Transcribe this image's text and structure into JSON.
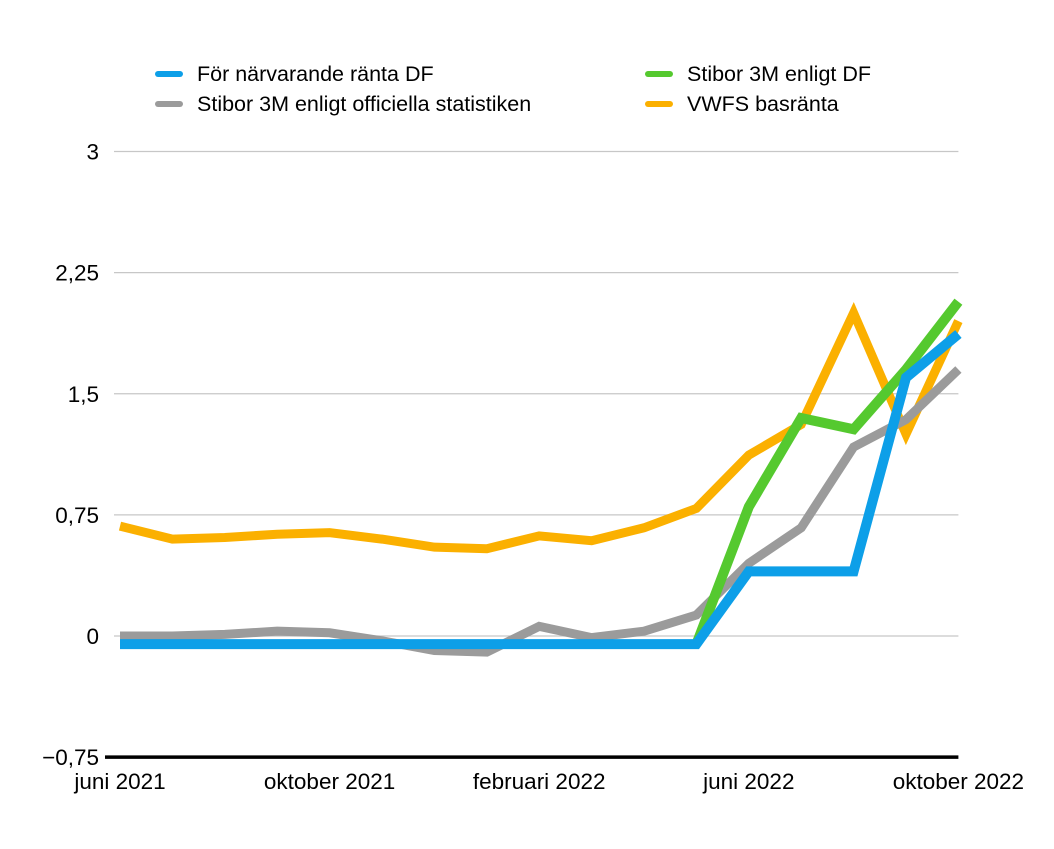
{
  "background_color": "#ffffff",
  "text_color": "#000000",
  "gridline_color": "#c7c7c7",
  "axis_color": "#000000",
  "legend": {
    "items": [
      {
        "series": 0,
        "column": 0,
        "row": 0
      },
      {
        "series": 1,
        "column": 0,
        "row": 1
      },
      {
        "series": 2,
        "column": 1,
        "row": 0
      },
      {
        "series": 3,
        "column": 1,
        "row": 1
      }
    ]
  },
  "chart_data": {
    "type": "line",
    "title": "",
    "xlabel": "",
    "ylabel": "",
    "ylim": [
      -0.75,
      3
    ],
    "grid": true,
    "legend_position": "top",
    "x_unit": "month",
    "categories": [
      "juni 2021",
      "juli 2021",
      "augusti 2021",
      "september 2021",
      "oktober 2021",
      "november 2021",
      "december 2021",
      "januari 2022",
      "februari 2022",
      "mars 2022",
      "april 2022",
      "maj 2022",
      "juni 2022",
      "juli 2022",
      "augusti 2022",
      "september 2022",
      "oktober 2022"
    ],
    "x_ticks": [
      {
        "index": 0,
        "label": "juni 2021"
      },
      {
        "index": 4,
        "label": "oktober 2021"
      },
      {
        "index": 8,
        "label": "februari 2022"
      },
      {
        "index": 12,
        "label": "juni 2022"
      },
      {
        "index": 16,
        "label": "oktober 2022"
      }
    ],
    "y_ticks": [
      {
        "value": 3,
        "label": "3"
      },
      {
        "value": 2.25,
        "label": "2,25"
      },
      {
        "value": 1.5,
        "label": "1,5"
      },
      {
        "value": 0.75,
        "label": "0,75"
      },
      {
        "value": 0,
        "label": "0"
      },
      {
        "value": -0.75,
        "label": "−0,75",
        "is_axis": true
      }
    ],
    "series": [
      {
        "name": "För närvarande ränta DF",
        "color": "#0d9fe8",
        "width": 10,
        "z": 4,
        "values": [
          -0.05,
          -0.05,
          -0.05,
          -0.05,
          -0.05,
          -0.05,
          -0.05,
          -0.05,
          -0.05,
          -0.05,
          -0.05,
          -0.05,
          0.4,
          0.4,
          0.4,
          1.6,
          1.87
        ]
      },
      {
        "name": "Stibor 3M enligt officiella statistiken",
        "color": "#9b9b9b",
        "width": 9,
        "z": 2,
        "values": [
          0.0,
          0.0,
          0.01,
          0.03,
          0.02,
          -0.03,
          -0.09,
          -0.1,
          0.06,
          -0.01,
          0.03,
          0.13,
          0.45,
          0.67,
          1.17,
          1.34,
          1.65
        ]
      },
      {
        "name": "Stibor 3M enligt DF",
        "color": "#55c92f",
        "width": 10,
        "z": 3,
        "values": [
          null,
          null,
          null,
          null,
          null,
          null,
          null,
          null,
          null,
          null,
          null,
          -0.05,
          0.8,
          1.35,
          1.28,
          1.65,
          2.07
        ]
      },
      {
        "name": "VWFS basränta",
        "color": "#fbb000",
        "width": 9,
        "z": 1,
        "values": [
          0.68,
          0.6,
          0.61,
          0.63,
          0.64,
          0.6,
          0.55,
          0.54,
          0.62,
          0.59,
          0.67,
          0.79,
          1.12,
          1.31,
          2.0,
          1.25,
          1.95
        ]
      }
    ]
  }
}
